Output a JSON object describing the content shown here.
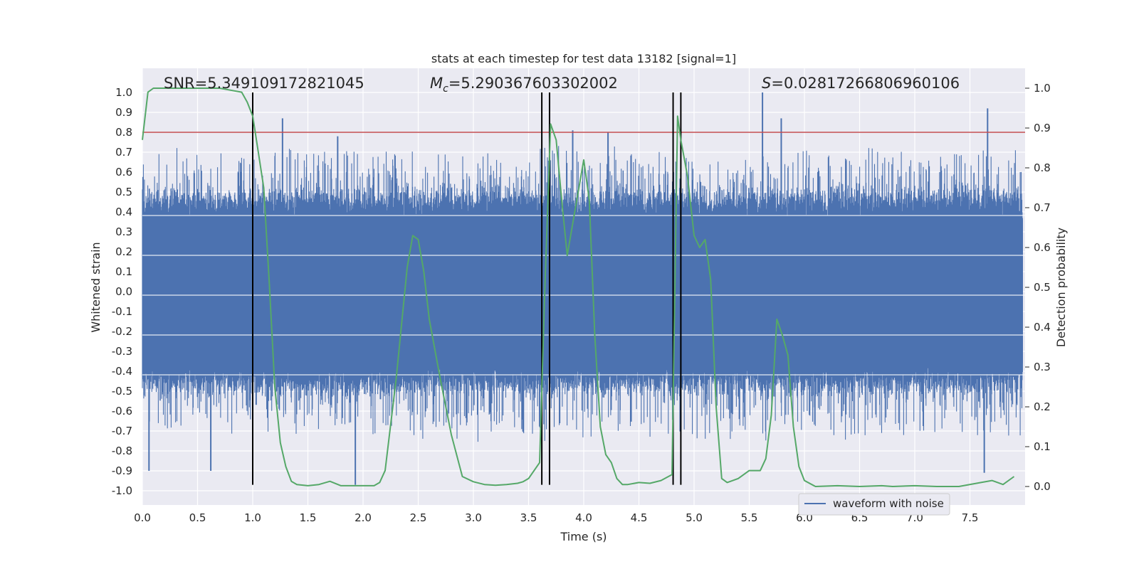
{
  "chart_data": {
    "type": "line",
    "title": "stats at each timestep for test data 13182 [signal=1]",
    "xlabel": "Time (s)",
    "ylabel": "Whitened strain",
    "y2label": "Detection probability",
    "xlim": [
      0.0,
      8.0
    ],
    "ylim": [
      -1.1,
      1.1
    ],
    "y2lim": [
      -0.05,
      1.05
    ],
    "xticks": [
      "0.0",
      "0.5",
      "1.0",
      "1.5",
      "2.0",
      "2.5",
      "3.0",
      "3.5",
      "4.0",
      "4.5",
      "5.0",
      "5.5",
      "6.0",
      "6.5",
      "7.0",
      "7.5"
    ],
    "yticks": [
      "1.0",
      "0.9",
      "0.8",
      "0.7",
      "0.6",
      "0.5",
      "0.4",
      "0.3",
      "0.2",
      "0.1",
      "0.0",
      "-0.1",
      "-0.2",
      "-0.3",
      "-0.4",
      "-0.5",
      "-0.6",
      "-0.7",
      "-0.8",
      "-0.9",
      "-1.0"
    ],
    "y2ticks": [
      "1.0",
      "0.9",
      "0.8",
      "0.7",
      "0.6",
      "0.5",
      "0.4",
      "0.3",
      "0.2",
      "0.1",
      "0.0"
    ],
    "annotations": {
      "snr_text": "SNR=5.349109172821045",
      "mc_prefix": "M",
      "mc_sub": "c",
      "mc_value": "=5.290367603302002",
      "s_prefix": "S",
      "s_value": "=0.02817266806960106"
    },
    "threshold": 0.8,
    "vertical_lines": [
      1.0,
      3.62,
      3.69,
      4.81,
      4.88
    ],
    "legend": [
      "waveform with noise"
    ],
    "legend_position": "lower-right",
    "grid": true,
    "colors": {
      "plot_bg": "#eaeaf2",
      "waveform": "#4c72b0",
      "probability": "#55a868",
      "threshold": "#c44e52",
      "vline": "#000000",
      "grid": "#ffffff"
    },
    "series": [
      {
        "name": "waveform with noise",
        "note_values": "dense noisy strain trace, amplitude roughly -0.97 to 1.0",
        "spikes": [
          {
            "x": 1.27,
            "y": 0.87
          },
          {
            "x": 1.77,
            "y": 0.78
          },
          {
            "x": 3.9,
            "y": 0.81
          },
          {
            "x": 4.22,
            "y": 0.8
          },
          {
            "x": 5.62,
            "y": 1.0
          },
          {
            "x": 5.79,
            "y": 0.87
          },
          {
            "x": 7.66,
            "y": 0.92
          },
          {
            "x": 1.93,
            "y": -0.97
          },
          {
            "x": 0.06,
            "y": -0.9
          },
          {
            "x": 0.62,
            "y": -0.9
          },
          {
            "x": 7.63,
            "y": -0.91
          }
        ]
      },
      {
        "name": "",
        "axis": "y2",
        "x": [
          0.0,
          0.05,
          0.1,
          0.2,
          0.3,
          0.4,
          0.5,
          0.6,
          0.7,
          0.8,
          0.9,
          0.95,
          1.0,
          1.05,
          1.1,
          1.15,
          1.2,
          1.25,
          1.3,
          1.35,
          1.4,
          1.5,
          1.6,
          1.7,
          1.8,
          1.9,
          2.0,
          2.1,
          2.15,
          2.2,
          2.3,
          2.4,
          2.45,
          2.5,
          2.55,
          2.6,
          2.7,
          2.8,
          2.9,
          3.0,
          3.1,
          3.2,
          3.3,
          3.4,
          3.45,
          3.5,
          3.55,
          3.6,
          3.65,
          3.7,
          3.75,
          3.8,
          3.85,
          3.9,
          4.0,
          4.05,
          4.1,
          4.15,
          4.2,
          4.25,
          4.3,
          4.35,
          4.4,
          4.5,
          4.6,
          4.7,
          4.8,
          4.85,
          4.88,
          4.94,
          5.0,
          5.05,
          5.1,
          5.15,
          5.2,
          5.25,
          5.3,
          5.4,
          5.5,
          5.6,
          5.65,
          5.7,
          5.75,
          5.8,
          5.85,
          5.9,
          5.95,
          6.0,
          6.1,
          6.3,
          6.5,
          6.7,
          6.8,
          7.0,
          7.2,
          7.4,
          7.6,
          7.7,
          7.8,
          7.9
        ],
        "y": [
          0.87,
          0.99,
          1.0,
          1.0,
          1.0,
          1.0,
          1.0,
          1.0,
          1.0,
          0.995,
          0.99,
          0.965,
          0.93,
          0.84,
          0.75,
          0.51,
          0.25,
          0.11,
          0.05,
          0.013,
          0.005,
          0.002,
          0.005,
          0.013,
          0.002,
          0.002,
          0.002,
          0.002,
          0.01,
          0.04,
          0.27,
          0.55,
          0.63,
          0.62,
          0.54,
          0.42,
          0.27,
          0.13,
          0.025,
          0.012,
          0.005,
          0.003,
          0.005,
          0.008,
          0.012,
          0.02,
          0.04,
          0.06,
          0.52,
          0.91,
          0.87,
          0.72,
          0.58,
          0.66,
          0.82,
          0.72,
          0.38,
          0.15,
          0.08,
          0.06,
          0.02,
          0.005,
          0.005,
          0.01,
          0.008,
          0.015,
          0.03,
          0.93,
          0.87,
          0.78,
          0.63,
          0.6,
          0.62,
          0.52,
          0.2,
          0.02,
          0.01,
          0.02,
          0.04,
          0.04,
          0.07,
          0.18,
          0.42,
          0.38,
          0.33,
          0.15,
          0.05,
          0.015,
          0.0,
          0.002,
          0.0,
          0.002,
          0.0,
          0.002,
          0.0,
          0.0,
          0.01,
          0.015,
          0.005,
          0.025
        ]
      }
    ]
  }
}
